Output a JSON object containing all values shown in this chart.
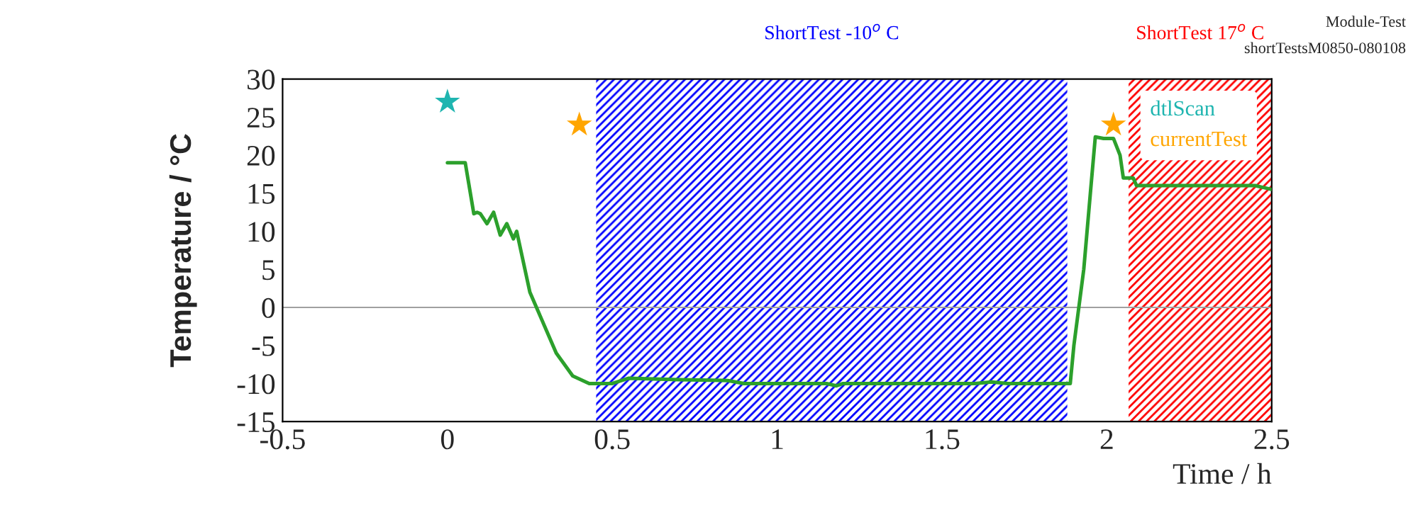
{
  "chart_data": {
    "type": "line",
    "xlabel": "Time / h",
    "ylabel": "Temperature / °C",
    "xlim": [
      -0.5,
      2.5
    ],
    "xticks": [
      -0.5,
      0,
      0.5,
      1,
      1.5,
      2,
      2.5
    ],
    "ylim": [
      -15,
      30
    ],
    "yticks": [
      -15,
      -10,
      -5,
      0,
      5,
      10,
      15,
      20,
      25,
      30
    ],
    "grid": false,
    "legend": "top right",
    "series": [
      {
        "color": "#2ca02c",
        "line_style": "solid",
        "marker": "none",
        "x": [
          0.0,
          0.054,
          0.08,
          0.09,
          0.1,
          0.12,
          0.14,
          0.16,
          0.18,
          0.2,
          0.21,
          0.25,
          0.27,
          0.33,
          0.38,
          0.43,
          0.5,
          0.55,
          0.7,
          0.85,
          0.9,
          1.15,
          1.18,
          1.2,
          1.6,
          1.65,
          1.7,
          1.889,
          1.9,
          1.93,
          1.95,
          1.965,
          1.99,
          2.02,
          2.04,
          2.05,
          2.08,
          2.09,
          2.45,
          2.5
        ],
        "values": [
          19,
          19,
          12.3,
          12.5,
          12.3,
          11,
          12.5,
          9.5,
          11,
          9,
          10,
          2,
          0,
          -6,
          -9,
          -10,
          -10,
          -9.3,
          -9.5,
          -9.6,
          -10,
          -10,
          -10.3,
          -10,
          -10,
          -9.8,
          -10,
          -10,
          -5,
          5,
          15,
          22.4,
          22.2,
          22.2,
          20,
          17,
          17,
          16,
          16,
          15.5
        ]
      },
      {
        "name": "dtlScan",
        "type": "scatter",
        "color": "#1fb5b0",
        "marker": "star",
        "x": [
          0.0
        ],
        "values": [
          27
        ]
      },
      {
        "name": "currentTest",
        "type": "scatter",
        "color": "#ffa500",
        "marker": "star",
        "x": [
          0.4,
          2.02
        ],
        "values": [
          24,
          24
        ]
      }
    ],
    "ref_lines": [
      {
        "axis": "y",
        "value": 0,
        "color": "#a0a0a0"
      }
    ],
    "bands": [
      {
        "axis": "x",
        "from": 0.451,
        "to": 1.88,
        "label": "ShortTest -10$^{o}$ C",
        "color": "#0000ff"
      },
      {
        "axis": "x",
        "from": 2.066,
        "to": 2.5,
        "label": "ShortTest 17$^{o}$ C",
        "color": "#ff0000"
      }
    ],
    "annotations": [
      "Module-Test",
      "shortTestsM0850-080108"
    ]
  }
}
